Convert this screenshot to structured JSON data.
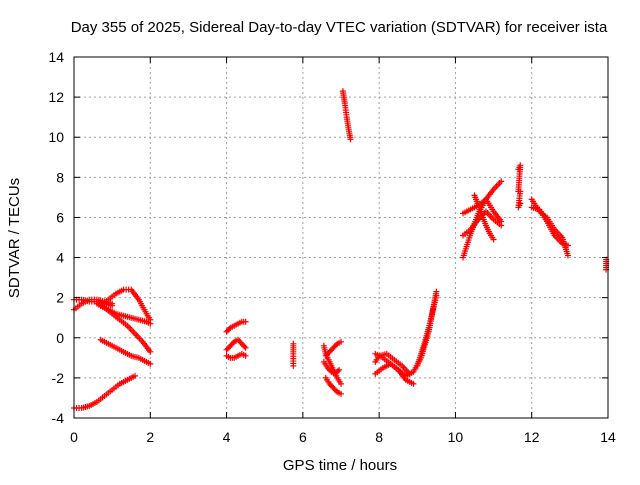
{
  "chart_data": {
    "type": "scatter",
    "title": "Day 355 of 2025, Sidereal Day-to-day VTEC variation (SDTVAR) for receiver ista",
    "xlabel": "GPS time / hours",
    "ylabel": "SDTVAR / TECUs",
    "xlim": [
      0,
      14
    ],
    "ylim": [
      -4,
      14
    ],
    "xticks": [
      "0",
      "2",
      "4",
      "6",
      "8",
      "10",
      "12",
      "14"
    ],
    "yticks": [
      "-4",
      "-2",
      "0",
      "2",
      "4",
      "6",
      "8",
      "10",
      "12",
      "14"
    ],
    "grid": true,
    "marker": "+",
    "colors": {
      "marker": "#ff0000",
      "grid": "#a0a0a0",
      "axis": "#000000"
    },
    "series": [
      {
        "name": "SDTVAR",
        "segments": [
          {
            "x": [
              0.0,
              0.2,
              0.4,
              0.6,
              0.8,
              1.0
            ],
            "y": [
              1.4,
              1.7,
              1.9,
              1.9,
              1.8,
              1.7
            ]
          },
          {
            "x": [
              0.0,
              0.2,
              0.4,
              0.6,
              0.8,
              1.0
            ],
            "y": [
              1.9,
              1.9,
              1.8,
              1.8,
              1.7,
              1.6
            ]
          },
          {
            "x": [
              0.7,
              0.9,
              1.1,
              1.3,
              1.5,
              1.7,
              1.9,
              2.0
            ],
            "y": [
              1.6,
              1.9,
              2.2,
              2.4,
              2.4,
              1.9,
              1.2,
              0.9
            ]
          },
          {
            "x": [
              0.7,
              0.9,
              1.1,
              1.3,
              1.5,
              1.7,
              1.9,
              2.0
            ],
            "y": [
              1.6,
              1.4,
              1.2,
              1.1,
              1.0,
              0.9,
              0.8,
              0.7
            ]
          },
          {
            "x": [
              0.6,
              0.8,
              1.0,
              1.2,
              1.4,
              1.6,
              1.8,
              2.0
            ],
            "y": [
              1.7,
              1.5,
              1.2,
              0.9,
              0.6,
              0.2,
              -0.2,
              -0.7
            ]
          },
          {
            "x": [
              0.7,
              0.9,
              1.1,
              1.3,
              1.5,
              1.7,
              1.9,
              2.0
            ],
            "y": [
              -0.1,
              -0.3,
              -0.5,
              -0.7,
              -0.9,
              -1.0,
              -1.2,
              -1.3
            ]
          },
          {
            "x": [
              0.0,
              0.2,
              0.4,
              0.6,
              0.8,
              1.0,
              1.2,
              1.4,
              1.6
            ],
            "y": [
              -3.5,
              -3.5,
              -3.4,
              -3.2,
              -2.9,
              -2.6,
              -2.3,
              -2.1,
              -1.9
            ]
          },
          {
            "x": [
              4.0,
              4.1,
              4.2,
              4.3,
              4.4,
              4.5
            ],
            "y": [
              0.3,
              0.5,
              0.6,
              0.7,
              0.8,
              0.8
            ]
          },
          {
            "x": [
              4.0,
              4.1,
              4.2,
              4.3,
              4.4,
              4.5
            ],
            "y": [
              -0.6,
              -0.4,
              -0.2,
              -0.1,
              -0.3,
              -0.5
            ]
          },
          {
            "x": [
              4.0,
              4.1,
              4.2,
              4.3,
              4.4,
              4.5
            ],
            "y": [
              -0.9,
              -1.0,
              -1.0,
              -0.9,
              -0.8,
              -0.9
            ]
          },
          {
            "x": [
              5.75,
              5.75,
              5.75
            ],
            "y": [
              -0.3,
              -0.8,
              -1.4
            ]
          },
          {
            "x": [
              6.55,
              6.6,
              6.7,
              6.8,
              6.9,
              7.0
            ],
            "y": [
              -0.4,
              -0.8,
              -1.2,
              -1.6,
              -2.0,
              -2.3
            ]
          },
          {
            "x": [
              6.55,
              6.65,
              6.75,
              6.85,
              6.95
            ],
            "y": [
              -1.2,
              -1.5,
              -1.7,
              -1.8,
              -1.6
            ]
          },
          {
            "x": [
              6.6,
              6.7,
              6.8,
              6.9,
              7.0
            ],
            "y": [
              -2.0,
              -2.3,
              -2.5,
              -2.7,
              -2.8
            ]
          },
          {
            "x": [
              6.6,
              6.7,
              6.8,
              6.9,
              7.0
            ],
            "y": [
              -0.9,
              -0.7,
              -0.5,
              -0.3,
              -0.2
            ]
          },
          {
            "x": [
              7.05,
              7.1,
              7.15,
              7.2,
              7.25
            ],
            "y": [
              12.3,
              11.7,
              11.0,
              10.4,
              9.9
            ]
          },
          {
            "x": [
              7.9,
              8.1,
              8.3,
              8.5,
              8.7,
              8.9,
              9.1,
              9.3,
              9.5
            ],
            "y": [
              -0.8,
              -1.0,
              -1.3,
              -1.6,
              -1.9,
              -1.7,
              -1.0,
              0.3,
              2.3
            ]
          },
          {
            "x": [
              7.9,
              8.1,
              8.3,
              8.5,
              8.7,
              8.9
            ],
            "y": [
              -1.8,
              -1.5,
              -1.3,
              -1.6,
              -2.1,
              -2.3
            ]
          },
          {
            "x": [
              7.9,
              8.0,
              8.2,
              8.4,
              8.6,
              8.8
            ],
            "y": [
              -1.2,
              -0.9,
              -0.8,
              -1.1,
              -1.4,
              -1.8
            ]
          },
          {
            "x": [
              9.0,
              9.1,
              9.2,
              9.3,
              9.4,
              9.5
            ],
            "y": [
              -1.4,
              -0.8,
              -0.2,
              0.5,
              1.3,
              2.1
            ]
          },
          {
            "x": [
              10.2,
              10.4,
              10.6,
              10.8,
              11.0,
              11.2
            ],
            "y": [
              4.0,
              5.2,
              6.2,
              6.9,
              7.4,
              7.8
            ]
          },
          {
            "x": [
              10.2,
              10.4,
              10.6,
              10.8,
              11.0,
              11.2
            ],
            "y": [
              6.2,
              6.4,
              6.6,
              6.9,
              6.3,
              5.8
            ]
          },
          {
            "x": [
              10.2,
              10.4,
              10.6,
              10.8,
              11.0,
              11.2
            ],
            "y": [
              5.1,
              5.4,
              5.9,
              6.3,
              5.9,
              5.6
            ]
          },
          {
            "x": [
              10.5,
              10.6,
              10.7,
              10.8,
              10.9,
              11.0
            ],
            "y": [
              7.1,
              6.6,
              6.1,
              5.6,
              5.2,
              4.9
            ]
          },
          {
            "x": [
              11.65,
              11.7,
              11.65,
              11.7,
              11.65,
              11.7
            ],
            "y": [
              8.4,
              8.6,
              7.3,
              7.3,
              6.5,
              6.7
            ]
          },
          {
            "x": [
              12.0,
              12.2,
              12.4,
              12.6,
              12.8,
              12.95
            ],
            "y": [
              6.9,
              6.3,
              6.0,
              5.4,
              5.0,
              4.1
            ]
          },
          {
            "x": [
              12.0,
              12.2,
              12.4,
              12.6,
              12.8,
              12.95
            ],
            "y": [
              6.5,
              6.4,
              5.8,
              5.1,
              4.7,
              4.6
            ]
          },
          {
            "x": [
              13.95,
              13.95,
              13.95,
              13.95
            ],
            "y": [
              3.9,
              3.7,
              3.5,
              3.4
            ]
          }
        ]
      }
    ]
  }
}
